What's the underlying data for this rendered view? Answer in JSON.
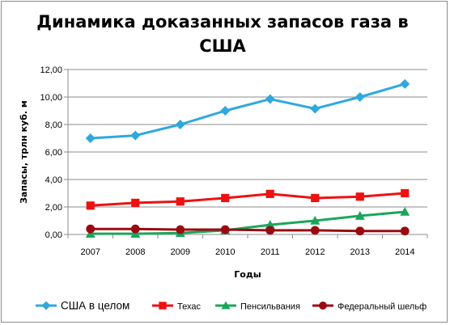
{
  "chart_data": {
    "type": "line",
    "title": "Динамика доказанных запасов газа в США",
    "title_lines": [
      "Динамика доказанных запасов газа в",
      "США"
    ],
    "xlabel": "Годы",
    "ylabel": "Запасы, трлн куб. м",
    "categories": [
      "2007",
      "2008",
      "2009",
      "2010",
      "2011",
      "2012",
      "2013",
      "2014"
    ],
    "ylim": [
      0,
      12
    ],
    "yticks": [
      "0,00",
      "2,00",
      "4,00",
      "6,00",
      "8,00",
      "10,00",
      "12,00"
    ],
    "grid": true,
    "legend_position": "bottom",
    "series": [
      {
        "name": "США в целом",
        "color": "#2fa8de",
        "marker": "diamond",
        "values": [
          7.0,
          7.2,
          8.0,
          9.0,
          9.85,
          9.15,
          10.0,
          10.95
        ]
      },
      {
        "name": "Техас",
        "color": "#ee1111",
        "marker": "square",
        "values": [
          2.1,
          2.3,
          2.4,
          2.65,
          2.95,
          2.65,
          2.75,
          3.0
        ]
      },
      {
        "name": "Пенсильвания",
        "color": "#1aa65a",
        "marker": "triangle",
        "values": [
          0.05,
          0.05,
          0.1,
          0.3,
          0.7,
          1.0,
          1.35,
          1.65
        ]
      },
      {
        "name": "Федеральный шельф",
        "color": "#9b0a12",
        "marker": "circle",
        "values": [
          0.4,
          0.4,
          0.35,
          0.35,
          0.3,
          0.3,
          0.25,
          0.25
        ]
      }
    ]
  }
}
